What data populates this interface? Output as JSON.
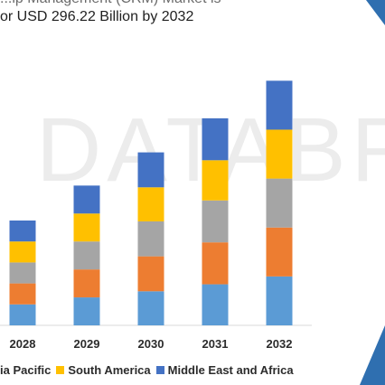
{
  "header": {
    "title_line_1": "...ip Management (CRM) Market is",
    "title_line_2": "or USD 296.22 Billion by 2032"
  },
  "watermark": "DATABRIDGE",
  "colors": {
    "north_america": "#5b9bd5",
    "europe": "#ed7d31",
    "other": "#a5a5a5",
    "south_america": "#ffc000",
    "middle_east_africa": "#4472c4",
    "accent_triangle": "#2f6fb0"
  },
  "chart_data": {
    "type": "bar",
    "stacked": true,
    "categories": [
      "2028",
      "2029",
      "2030",
      "2031",
      "2032"
    ],
    "series": [
      {
        "name": "",
        "color": "#5b9bd5",
        "values": [
          24,
          32,
          39,
          47,
          56
        ]
      },
      {
        "name": "",
        "color": "#ed7d31",
        "values": [
          24,
          32,
          40,
          48,
          56
        ]
      },
      {
        "name": "",
        "color": "#a5a5a5",
        "values": [
          24,
          32,
          40,
          48,
          56
        ]
      },
      {
        "name": "South America",
        "color": "#ffc000",
        "values": [
          24,
          32,
          39,
          46,
          56
        ]
      },
      {
        "name": "Middle East and Africa",
        "color": "#4472c4",
        "values": [
          24,
          32,
          40,
          48,
          56
        ]
      }
    ],
    "ylim": [
      0,
      300
    ],
    "grid": false,
    "legend_position": "bottom"
  },
  "legend": [
    {
      "label": "ia Pacific",
      "color": "#a5a5a5"
    },
    {
      "label": "South America",
      "color": "#ffc000"
    },
    {
      "label": "Middle East and Africa",
      "color": "#4472c4"
    }
  ]
}
